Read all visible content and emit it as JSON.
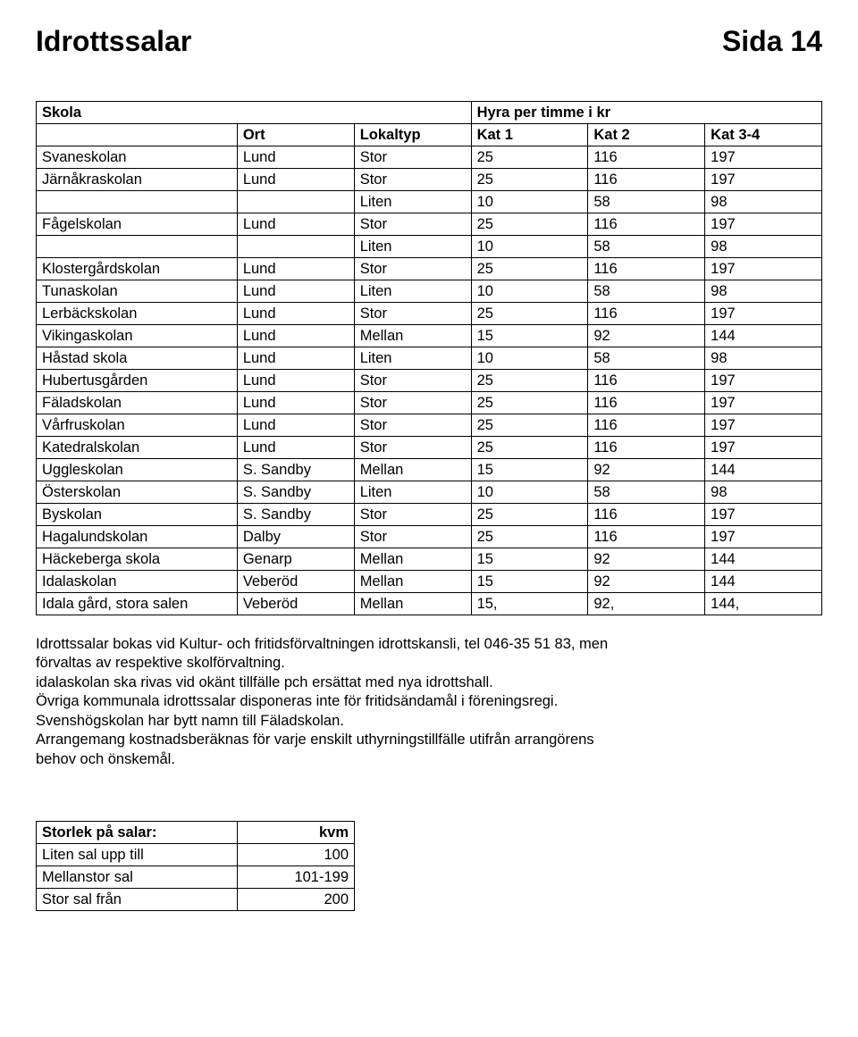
{
  "header": {
    "title_left": "Idrottssalar",
    "title_right": "Sida 14"
  },
  "main_table": {
    "header": {
      "skola": "Skola",
      "span_label": "Hyra per timme i kr",
      "cols": [
        "Ort",
        "Lokaltyp",
        "Kat 1",
        "Kat 2",
        "Kat 3-4"
      ]
    },
    "rows": [
      [
        "Svaneskolan",
        "Lund",
        "Stor",
        "25",
        "116",
        "197"
      ],
      [
        "Järnåkraskolan",
        "Lund",
        "Stor",
        "25",
        "116",
        "197"
      ],
      [
        "",
        "",
        "Liten",
        "10",
        "58",
        "98"
      ],
      [
        "Fågelskolan",
        "Lund",
        "Stor",
        "25",
        "116",
        "197"
      ],
      [
        "",
        "",
        "Liten",
        "10",
        "58",
        "98"
      ],
      [
        "Klostergårdskolan",
        "Lund",
        "Stor",
        "25",
        "116",
        "197"
      ],
      [
        "Tunaskolan",
        "Lund",
        "Liten",
        "10",
        "58",
        "98"
      ],
      [
        "Lerbäckskolan",
        "Lund",
        "Stor",
        "25",
        "116",
        "197"
      ],
      [
        "Vikingaskolan",
        "Lund",
        "Mellan",
        "15",
        "92",
        "144"
      ],
      [
        "Håstad skola",
        "Lund",
        "Liten",
        "10",
        "58",
        "98"
      ],
      [
        "Hubertusgården",
        "Lund",
        "Stor",
        "25",
        "116",
        "197"
      ],
      [
        "Fäladskolan",
        "Lund",
        "Stor",
        "25",
        "116",
        "197"
      ],
      [
        "Vårfruskolan",
        "Lund",
        "Stor",
        "25",
        "116",
        "197"
      ],
      [
        "Katedralskolan",
        "Lund",
        "Stor",
        "25",
        "116",
        "197"
      ],
      [
        "Uggleskolan",
        "S. Sandby",
        "Mellan",
        "15",
        "92",
        "144"
      ],
      [
        "Österskolan",
        "S. Sandby",
        "Liten",
        "10",
        "58",
        "98"
      ],
      [
        "Byskolan",
        "S. Sandby",
        "Stor",
        "25",
        "116",
        "197"
      ],
      [
        "Hagalundskolan",
        "Dalby",
        "Stor",
        "25",
        "116",
        "197"
      ],
      [
        "Häckeberga skola",
        "Genarp",
        "Mellan",
        "15",
        "92",
        "144"
      ],
      [
        "Idalaskolan",
        "Veberöd",
        "Mellan",
        "15",
        "92",
        "144"
      ],
      [
        "Idala gård, stora salen",
        "Veberöd",
        "Mellan",
        "15,",
        "92,",
        "144,"
      ]
    ]
  },
  "body": {
    "lines": [
      "Idrottssalar bokas vid Kultur- och fritidsförvaltningen idrottskansli, tel 046-35 51 83, men",
      "förvaltas av respektive skolförvaltning.",
      "idalaskolan ska rivas vid okänt tillfälle pch ersättat med nya idrottshall.",
      "Övriga kommunala idrottssalar disponeras inte för fritidsändamål i föreningsregi.",
      "Svenshögskolan har bytt namn till Fäladskolan.",
      "Arrangemang kostnadsberäknas för varje enskilt uthyrningstillfälle utifrån arrangörens",
      "behov och önskemål."
    ]
  },
  "small_table": {
    "header": [
      "Storlek på salar:",
      "kvm"
    ],
    "rows": [
      [
        "Liten sal upp till",
        "100"
      ],
      [
        "Mellanstor sal",
        "101-199"
      ],
      [
        "Stor sal från",
        "200"
      ]
    ]
  }
}
